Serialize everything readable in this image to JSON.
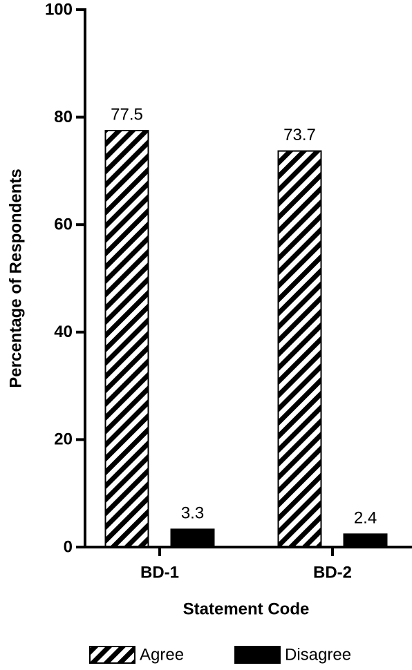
{
  "chart_data": {
    "type": "bar",
    "categories": [
      "BD-1",
      "BD-2"
    ],
    "series": [
      {
        "name": "Agree",
        "color": "#000000",
        "pattern": "hatch",
        "values": [
          77.5,
          73.7
        ]
      },
      {
        "name": "Disagree",
        "color": "#000000",
        "pattern": "solid",
        "values": [
          3.3,
          2.4
        ]
      }
    ],
    "xlabel": "Statement Code",
    "ylabel": "Percentage of Respondents",
    "ylim": [
      0,
      100
    ],
    "yticks": [
      0,
      20,
      40,
      60,
      80,
      100
    ],
    "legend": "bottom"
  }
}
